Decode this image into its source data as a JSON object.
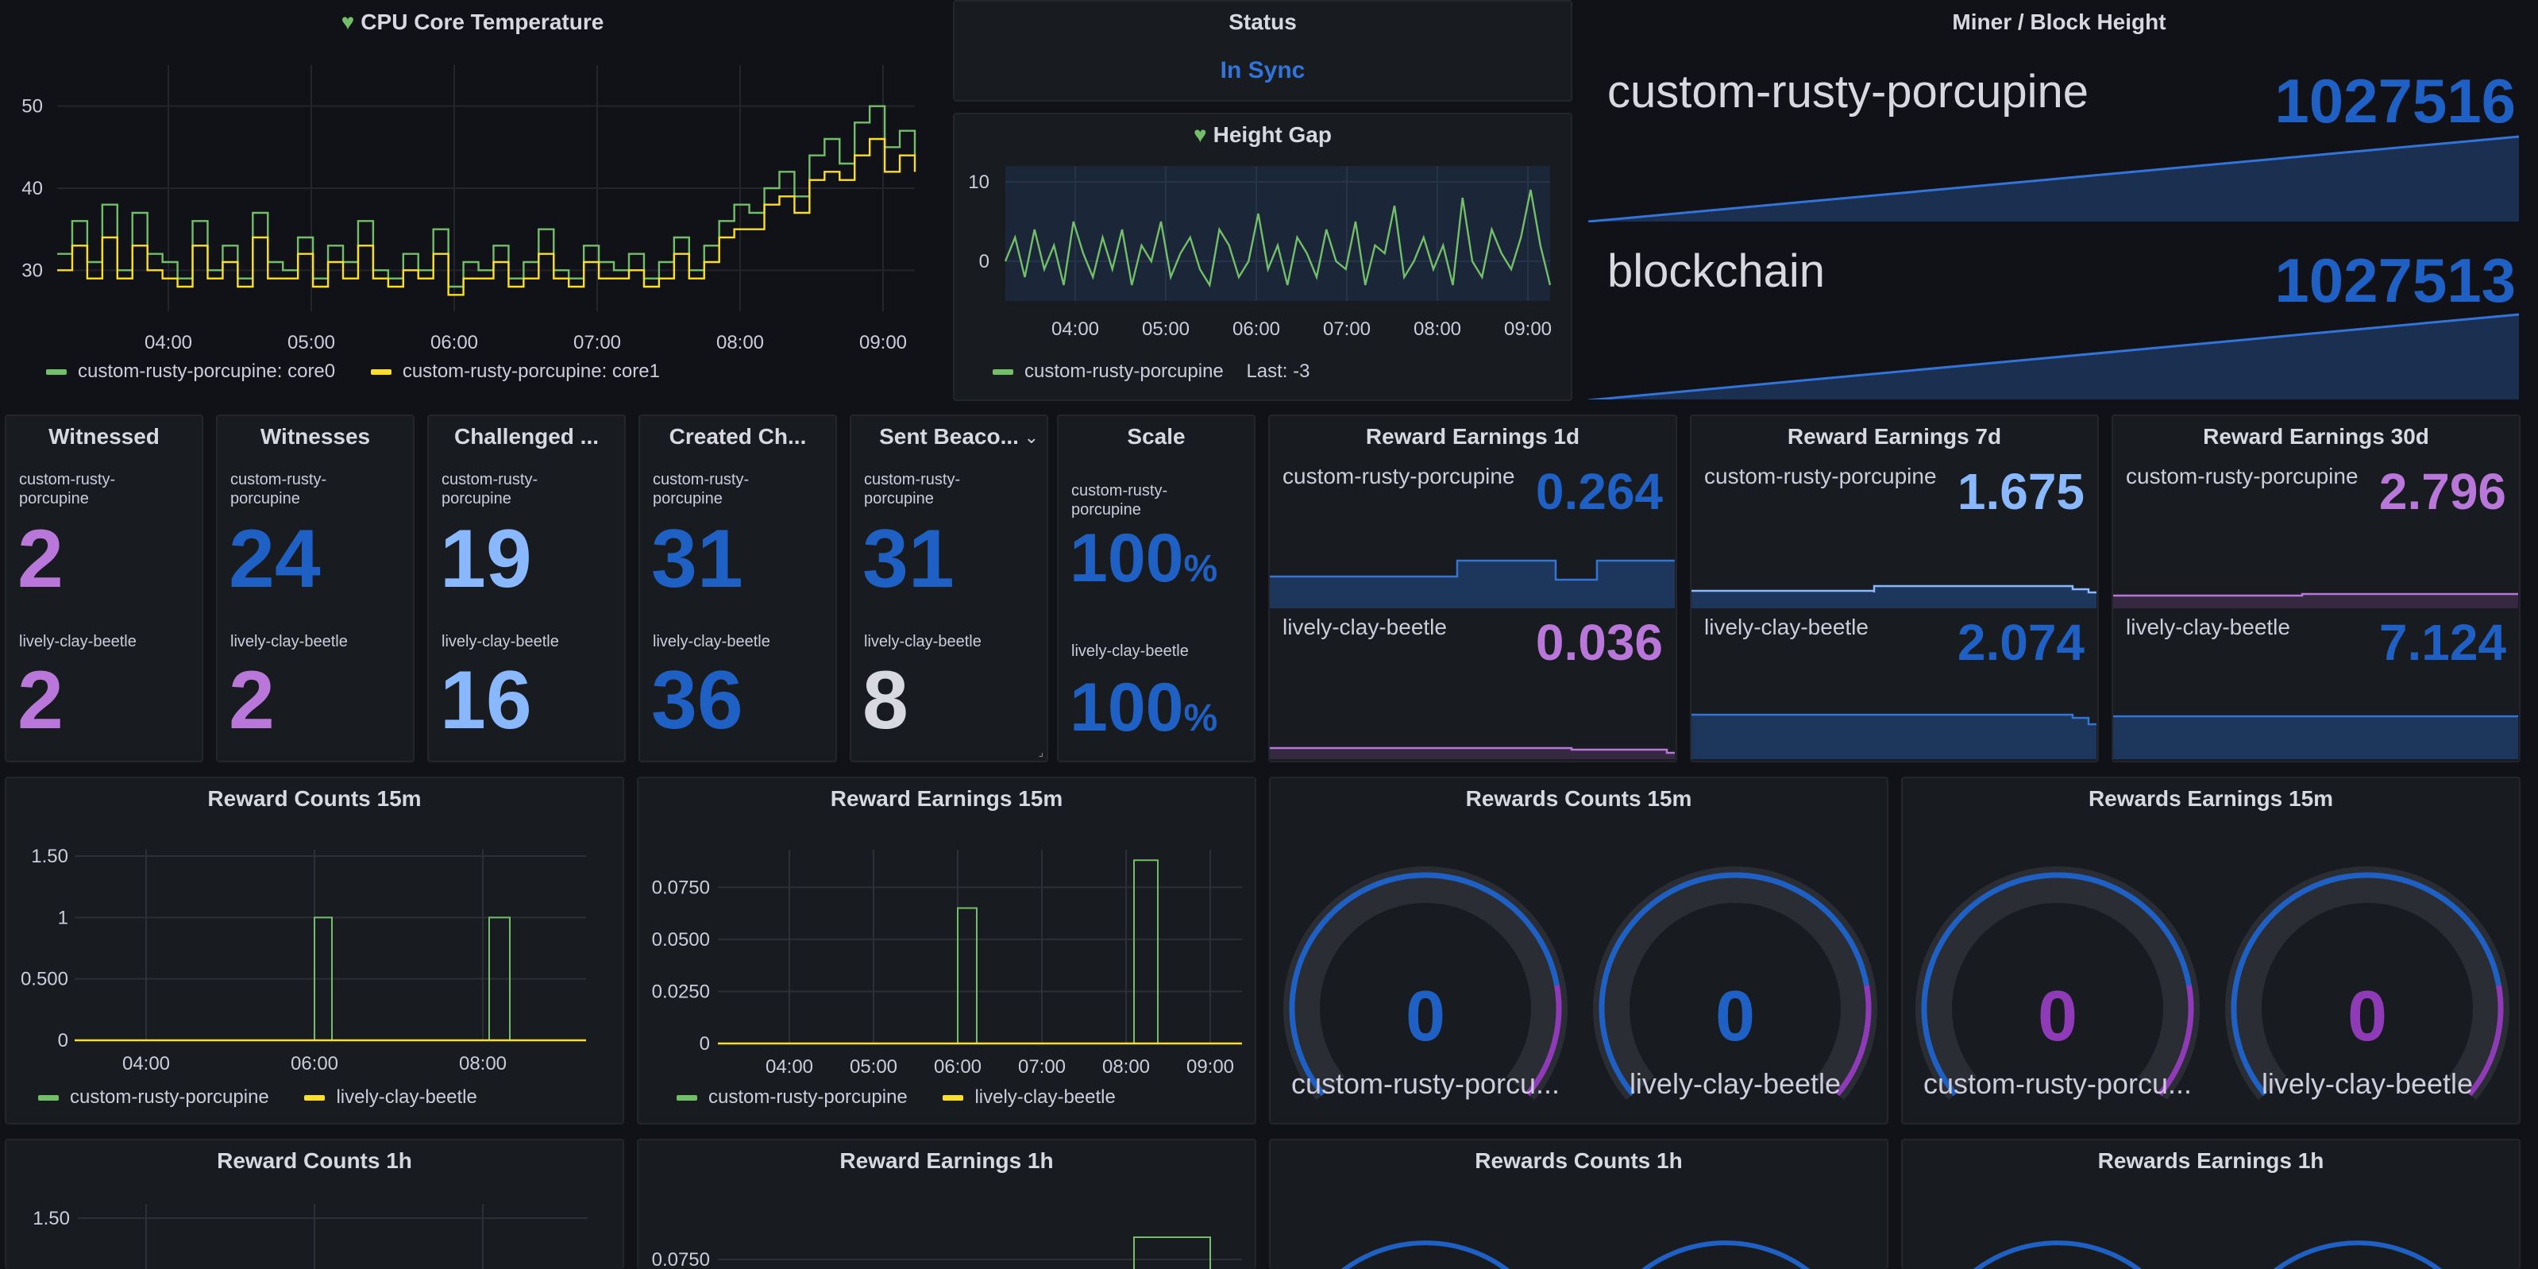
{
  "colors": {
    "green": "#73bf69",
    "yellow": "#fade2a",
    "blue": "#1f60c4",
    "light_blue": "#8ab8ff",
    "purple": "#b877d9",
    "deep_purple": "#8f3bb8",
    "white": "#d8d9e0",
    "in_sync": "#3274d9"
  },
  "cpu": {
    "title": "CPU Core Temperature",
    "legend": [
      {
        "name": "custom-rusty-porcupine: core0",
        "color": "#73bf69"
      },
      {
        "name": "custom-rusty-porcupine: core1",
        "color": "#fade2a"
      }
    ],
    "chart_data": {
      "type": "line",
      "x_ticks": [
        "04:00",
        "05:00",
        "06:00",
        "07:00",
        "08:00",
        "09:00"
      ],
      "y_ticks": [
        "30",
        "40",
        "50"
      ],
      "ylim": [
        25,
        55
      ],
      "series": [
        {
          "name": "custom-rusty-porcupine: core0",
          "values": [
            32,
            36,
            31,
            38,
            30,
            37,
            32,
            31,
            29,
            36,
            30,
            33,
            29,
            37,
            31,
            30,
            34,
            29,
            33,
            31,
            36,
            30,
            29,
            32,
            30,
            35,
            28,
            31,
            30,
            33,
            29,
            31,
            35,
            30,
            29,
            33,
            31,
            30,
            32,
            29,
            31,
            34,
            30,
            33,
            36,
            38,
            37,
            40,
            42,
            39,
            44,
            46,
            43,
            48,
            50,
            45,
            47,
            44
          ]
        },
        {
          "name": "custom-rusty-porcupine: core1",
          "values": [
            30,
            33,
            29,
            34,
            29,
            33,
            30,
            29,
            28,
            33,
            29,
            31,
            28,
            34,
            29,
            29,
            32,
            28,
            31,
            29,
            33,
            29,
            28,
            30,
            29,
            32,
            27,
            29,
            29,
            31,
            28,
            29,
            32,
            29,
            28,
            31,
            29,
            29,
            30,
            28,
            29,
            32,
            29,
            31,
            34,
            35,
            35,
            38,
            39,
            37,
            41,
            42,
            41,
            44,
            46,
            42,
            44,
            42
          ]
        }
      ]
    }
  },
  "status": {
    "title": "Status",
    "value": "In Sync"
  },
  "height_gap": {
    "title": "Height Gap",
    "legend_name": "custom-rusty-porcupine",
    "legend_last": "Last: -3",
    "chart_data": {
      "type": "line",
      "x_ticks": [
        "04:00",
        "05:00",
        "06:00",
        "07:00",
        "08:00",
        "09:00"
      ],
      "y_ticks": [
        "0",
        "10"
      ],
      "ylim": [
        -5,
        12
      ],
      "series": [
        {
          "name": "custom-rusty-porcupine",
          "values": [
            0,
            3,
            -2,
            4,
            -1,
            2,
            -3,
            5,
            1,
            -2,
            3,
            -1,
            4,
            -3,
            2,
            0,
            5,
            -2,
            1,
            3,
            -1,
            -3,
            4,
            2,
            -2,
            0,
            6,
            -1,
            2,
            -3,
            3,
            1,
            -2,
            4,
            0,
            -1,
            5,
            -3,
            2,
            1,
            7,
            -2,
            0,
            3,
            -1,
            2,
            -3,
            8,
            0,
            -2,
            4,
            1,
            -1,
            3,
            9,
            2,
            -3
          ]
        }
      ]
    }
  },
  "miner_block": {
    "title": "Miner / Block Height",
    "rows": [
      {
        "label": "custom-rusty-porcupine",
        "value": "1027516"
      },
      {
        "label": "blockchain",
        "value": "1027513"
      }
    ]
  },
  "stats": [
    {
      "title": "Witnessed",
      "items": [
        {
          "label": "custom-rusty-porcupine",
          "value": "2",
          "color": "#b877d9"
        },
        {
          "label": "lively-clay-beetle",
          "value": "2",
          "color": "#b877d9"
        }
      ]
    },
    {
      "title": "Witnesses",
      "items": [
        {
          "label": "custom-rusty-porcupine",
          "value": "24",
          "color": "#1f60c4"
        },
        {
          "label": "lively-clay-beetle",
          "value": "2",
          "color": "#b877d9"
        }
      ]
    },
    {
      "title": "Challenged ...",
      "items": [
        {
          "label": "custom-rusty-porcupine",
          "value": "19",
          "color": "#8ab8ff"
        },
        {
          "label": "lively-clay-beetle",
          "value": "16",
          "color": "#8ab8ff"
        }
      ]
    },
    {
      "title": "Created Ch...",
      "items": [
        {
          "label": "custom-rusty-porcupine",
          "value": "31",
          "color": "#1f60c4"
        },
        {
          "label": "lively-clay-beetle",
          "value": "36",
          "color": "#1f60c4"
        }
      ]
    },
    {
      "title": "Sent Beaco...",
      "items": [
        {
          "label": "custom-rusty-porcupine",
          "value": "31",
          "color": "#1f60c4"
        },
        {
          "label": "lively-clay-beetle",
          "value": "8",
          "color": "#d8d9e0"
        }
      ]
    }
  ],
  "scale": {
    "title": "Scale",
    "items": [
      {
        "label": "custom-rusty-porcupine",
        "value": "100",
        "unit": "%"
      },
      {
        "label": "lively-clay-beetle",
        "value": "100",
        "unit": "%"
      }
    ]
  },
  "earnings": [
    {
      "title": "Reward Earnings 1d",
      "rows": [
        {
          "label": "custom-rusty-porcupine",
          "value": "0.264",
          "color": "#1f60c4"
        },
        {
          "label": "lively-clay-beetle",
          "value": "0.036",
          "color": "#b877d9"
        }
      ]
    },
    {
      "title": "Reward Earnings 7d",
      "rows": [
        {
          "label": "custom-rusty-porcupine",
          "value": "1.675",
          "color": "#8ab8ff"
        },
        {
          "label": "lively-clay-beetle",
          "value": "2.074",
          "color": "#1f60c4"
        }
      ]
    },
    {
      "title": "Reward Earnings 30d",
      "rows": [
        {
          "label": "custom-rusty-porcupine",
          "value": "2.796",
          "color": "#b877d9"
        },
        {
          "label": "lively-clay-beetle",
          "value": "7.124",
          "color": "#1f60c4"
        }
      ]
    }
  ],
  "reward_counts_15m": {
    "title": "Reward Counts 15m",
    "legend": [
      {
        "name": "custom-rusty-porcupine",
        "color": "#73bf69"
      },
      {
        "name": "lively-clay-beetle",
        "color": "#fade2a"
      }
    ],
    "chart_data": {
      "type": "line",
      "x_ticks": [
        "04:00",
        "06:00",
        "08:00"
      ],
      "y_ticks": [
        "0",
        "0.500",
        "1",
        "1.50"
      ],
      "ylim": [
        0,
        1.5
      ]
    }
  },
  "reward_earnings_15m": {
    "title": "Reward Earnings 15m",
    "legend": [
      {
        "name": "custom-rusty-porcupine",
        "color": "#73bf69"
      },
      {
        "name": "lively-clay-beetle",
        "color": "#fade2a"
      }
    ],
    "chart_data": {
      "type": "line",
      "x_ticks": [
        "04:00",
        "05:00",
        "06:00",
        "07:00",
        "08:00",
        "09:00"
      ],
      "y_ticks": [
        "0",
        "0.0250",
        "0.0500",
        "0.0750"
      ],
      "ylim": [
        0,
        0.09
      ]
    }
  },
  "rewards_counts_15m": {
    "title": "Rewards Counts 15m",
    "gauges": [
      {
        "label": "custom-rusty-porcu...",
        "value": "0"
      },
      {
        "label": "lively-clay-beetle",
        "value": "0"
      }
    ]
  },
  "rewards_earnings_15m": {
    "title": "Rewards Earnings 15m",
    "gauges": [
      {
        "label": "custom-rusty-porcu...",
        "value": "0"
      },
      {
        "label": "lively-clay-beetle",
        "value": "0"
      }
    ]
  },
  "bottom_titles": [
    "Reward Counts 1h",
    "Reward Earnings 1h",
    "Rewards Counts 1h",
    "Rewards Earnings 1h"
  ],
  "bottom_ticks": {
    "counts_1h": "1.50",
    "earnings_1h": "0.0750"
  }
}
